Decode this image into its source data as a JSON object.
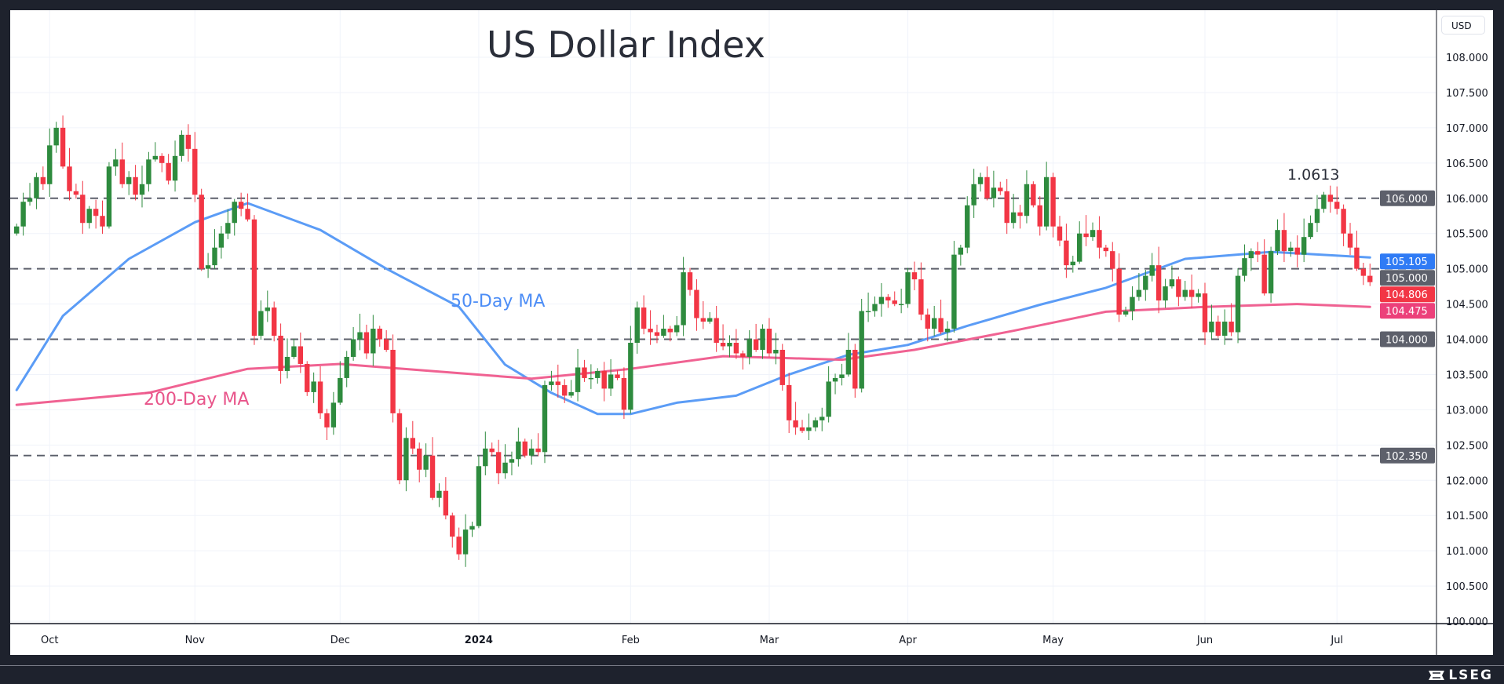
{
  "chart_data": {
    "type": "candlestick",
    "title": "US Dollar Index",
    "currency_label": "USD",
    "ylim": [
      100,
      108
    ],
    "y_ticks": [
      "108.000",
      "107.500",
      "107.000",
      "106.500",
      "106.000",
      "105.500",
      "105.000",
      "104.500",
      "104.000",
      "103.500",
      "103.000",
      "102.500",
      "102.000",
      "101.500",
      "101.000",
      "100.500",
      "100.000"
    ],
    "x_ticks": [
      {
        "label": "Oct",
        "bar": 5
      },
      {
        "label": "Nov",
        "bar": 27
      },
      {
        "label": "Dec",
        "bar": 49
      },
      {
        "label": "2024",
        "bar": 70,
        "bold": true
      },
      {
        "label": "Feb",
        "bar": 93
      },
      {
        "label": "Mar",
        "bar": 114
      },
      {
        "label": "Apr",
        "bar": 135
      },
      {
        "label": "May",
        "bar": 157
      },
      {
        "label": "Jun",
        "bar": 180
      },
      {
        "label": "Jul",
        "bar": 200
      }
    ],
    "closes": [
      105.6,
      105.95,
      106.0,
      106.3,
      106.2,
      106.75,
      107.0,
      106.45,
      106.1,
      106.05,
      105.65,
      105.85,
      105.75,
      105.6,
      106.45,
      106.55,
      106.2,
      106.3,
      106.05,
      106.2,
      106.55,
      106.6,
      106.5,
      106.25,
      106.6,
      106.9,
      106.7,
      106.05,
      105.0,
      105.05,
      105.3,
      105.5,
      105.65,
      105.95,
      105.85,
      105.7,
      104.05,
      104.4,
      104.45,
      104.05,
      103.55,
      103.75,
      103.9,
      103.65,
      103.25,
      103.4,
      102.95,
      102.75,
      103.1,
      103.45,
      103.75,
      104.0,
      104.1,
      103.8,
      104.15,
      104.0,
      103.85,
      102.95,
      102.0,
      102.6,
      102.45,
      102.15,
      102.35,
      101.75,
      101.85,
      101.5,
      101.2,
      100.95,
      101.3,
      101.35,
      102.2,
      102.45,
      102.4,
      102.1,
      102.25,
      102.3,
      102.55,
      102.35,
      102.45,
      102.4,
      103.35,
      103.4,
      103.35,
      103.2,
      103.25,
      103.6,
      103.45,
      103.45,
      103.55,
      103.3,
      103.5,
      103.45,
      103.0,
      103.95,
      104.45,
      104.15,
      104.1,
      104.05,
      104.15,
      104.1,
      104.2,
      104.95,
      104.7,
      104.3,
      104.25,
      104.3,
      103.95,
      103.9,
      103.95,
      103.8,
      103.75,
      104.0,
      103.85,
      104.15,
      103.8,
      103.85,
      103.35,
      102.85,
      102.75,
      102.7,
      102.75,
      102.85,
      102.9,
      103.4,
      103.45,
      103.5,
      103.85,
      103.3,
      104.4,
      104.4,
      104.5,
      104.6,
      104.55,
      104.5,
      104.5,
      104.95,
      104.85,
      104.35,
      104.15,
      104.3,
      104.1,
      104.15,
      105.2,
      105.3,
      105.9,
      106.2,
      106.3,
      106.0,
      106.15,
      106.1,
      105.65,
      105.8,
      105.75,
      106.2,
      105.9,
      105.6,
      106.3,
      105.6,
      105.4,
      105.05,
      105.1,
      105.5,
      105.45,
      105.55,
      105.3,
      105.25,
      105.0,
      104.35,
      104.4,
      104.6,
      104.7,
      104.9,
      105.05,
      104.55,
      104.75,
      104.85,
      104.6,
      104.7,
      104.6,
      104.65,
      104.1,
      104.25,
      104.05,
      104.25,
      104.1,
      104.9,
      105.15,
      105.25,
      105.2,
      104.65,
      105.25,
      105.55,
      105.25,
      105.3,
      105.2,
      105.45,
      105.65,
      105.85,
      106.05,
      105.95,
      105.85,
      105.5,
      105.3,
      105.0,
      104.9,
      104.81
    ],
    "first_open": 105.5,
    "series": [
      {
        "name": "50-Day MA",
        "color": "#5b9cf6",
        "points": [
          [
            0,
            103.28
          ],
          [
            7,
            104.33
          ],
          [
            17,
            105.14
          ],
          [
            27,
            105.66
          ],
          [
            35,
            105.93
          ],
          [
            46,
            105.55
          ],
          [
            56,
            105.0
          ],
          [
            67,
            104.46
          ],
          [
            74,
            103.64
          ],
          [
            81,
            103.24
          ],
          [
            88,
            102.94
          ],
          [
            93,
            102.94
          ],
          [
            100,
            103.1
          ],
          [
            109,
            103.2
          ],
          [
            117,
            103.5
          ],
          [
            126,
            103.78
          ],
          [
            135,
            103.92
          ],
          [
            144,
            104.19
          ],
          [
            155,
            104.49
          ],
          [
            165,
            104.73
          ],
          [
            177,
            105.14
          ],
          [
            190,
            105.24
          ],
          [
            205,
            105.16
          ]
        ]
      },
      {
        "name": "200-Day MA",
        "color": "#f06292",
        "points": [
          [
            0,
            103.07
          ],
          [
            20,
            103.24
          ],
          [
            35,
            103.58
          ],
          [
            49,
            103.65
          ],
          [
            64,
            103.54
          ],
          [
            78,
            103.44
          ],
          [
            93,
            103.58
          ],
          [
            107,
            103.76
          ],
          [
            125,
            103.71
          ],
          [
            136,
            103.85
          ],
          [
            151,
            104.12
          ],
          [
            165,
            104.39
          ],
          [
            180,
            104.46
          ],
          [
            194,
            104.5
          ],
          [
            205,
            104.46
          ]
        ]
      }
    ],
    "horizontal_levels": [
      106.0,
      105.0,
      104.0,
      102.35
    ],
    "price_badges": [
      {
        "label": "106.000",
        "value": 106.0,
        "color": "#5d606b"
      },
      {
        "label": "105.105",
        "value": 105.105,
        "color": "#2f7bf5"
      },
      {
        "label": "105.000",
        "value": 104.93,
        "color": "#5d606b"
      },
      {
        "label": "104.806",
        "value": 104.806,
        "color": "#f23645"
      },
      {
        "label": "104.475",
        "value": 104.475,
        "color": "#ec407a"
      },
      {
        "label": "104.000",
        "value": 104.0,
        "color": "#5d606b"
      },
      {
        "label": "102.350",
        "value": 102.35,
        "color": "#5d606b"
      }
    ],
    "annotations": {
      "ma50": "50-Day MA",
      "ma200": "200-Day MA",
      "high": "1.0613"
    },
    "colors": {
      "up": "#2e8b3e",
      "down": "#f23645",
      "level": "#5d606b"
    }
  },
  "footer": {
    "brand": "LSEG"
  }
}
